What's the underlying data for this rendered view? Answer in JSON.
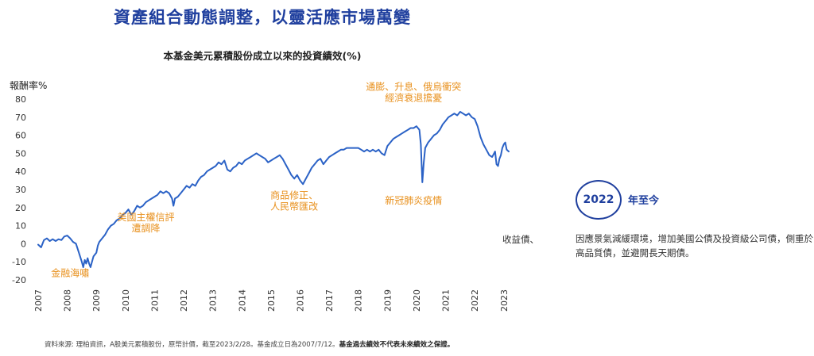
{
  "headline": "資產組合動態調整，以靈活應市場萬變",
  "source_note": {
    "regular": "資料來源: 理柏資訊，A股美元累積股份，原幣計價，截至2023/2/28。基金成立日為2007/7/12。",
    "bold": "基金過去績效不代表未來績效之保證。"
  },
  "side_panel": {
    "fragment": "收益債、",
    "badge_year": "2022",
    "badge_label": "年至今",
    "description": "因應景氣減緩環境，增加美國公債及投資級公司債，側重於高品質債，並避開長天期債。"
  },
  "colors": {
    "accent": "#1f3f9e",
    "line": "#2b62c6",
    "annotation": "#e8901c"
  },
  "chart_data": {
    "type": "line",
    "title": "本基金美元累積股份成立以來的投資績效(%)",
    "ylabel": "報酬率%",
    "ylim": [
      -20,
      80
    ],
    "xlim": [
      2007,
      2023.17
    ],
    "yticks": [
      80,
      70,
      60,
      50,
      40,
      30,
      20,
      10,
      0,
      -10,
      -20
    ],
    "xticks": [
      "2007",
      "2008",
      "2009",
      "2010",
      "2011",
      "2012",
      "2013",
      "2014",
      "2015",
      "2016",
      "2017",
      "2018",
      "2019",
      "2020",
      "2021",
      "2022",
      "2023"
    ],
    "grid": false,
    "annotations": [
      {
        "lines": [
          "金融海嘯"
        ],
        "x": 2008.1,
        "y": -18
      },
      {
        "lines": [
          "美國主權信評",
          "遭調降"
        ],
        "x": 2010.7,
        "y": 13
      },
      {
        "lines": [
          "商品修正、",
          "人民幣匯改"
        ],
        "x": 2015.8,
        "y": 25
      },
      {
        "lines": [
          "新冠肺炎疫情"
        ],
        "x": 2019.9,
        "y": 22
      },
      {
        "lines": [
          "通膨、升息、俄烏衝突",
          "經濟衰退擔憂"
        ],
        "x": 2019.9,
        "y": 85
      }
    ],
    "series": [
      {
        "values": [
          [
            2007.0,
            -0.5
          ],
          [
            2007.1,
            -2
          ],
          [
            2007.2,
            2
          ],
          [
            2007.3,
            3
          ],
          [
            2007.4,
            1.5
          ],
          [
            2007.5,
            2.5
          ],
          [
            2007.6,
            1.5
          ],
          [
            2007.7,
            2.5
          ],
          [
            2007.8,
            2
          ],
          [
            2007.9,
            4
          ],
          [
            2008.0,
            4.5
          ],
          [
            2008.1,
            3
          ],
          [
            2008.2,
            1
          ],
          [
            2008.3,
            0
          ],
          [
            2008.4,
            -5
          ],
          [
            2008.5,
            -10
          ],
          [
            2008.55,
            -13
          ],
          [
            2008.6,
            -9
          ],
          [
            2008.65,
            -11
          ],
          [
            2008.7,
            -8
          ],
          [
            2008.75,
            -11
          ],
          [
            2008.8,
            -13
          ],
          [
            2008.85,
            -10
          ],
          [
            2008.9,
            -7
          ],
          [
            2009.0,
            -5
          ],
          [
            2009.05,
            -1
          ],
          [
            2009.1,
            1
          ],
          [
            2009.2,
            3
          ],
          [
            2009.3,
            5
          ],
          [
            2009.4,
            8
          ],
          [
            2009.5,
            10
          ],
          [
            2009.6,
            11
          ],
          [
            2009.7,
            13
          ],
          [
            2009.8,
            14
          ],
          [
            2009.9,
            16
          ],
          [
            2010.0,
            17
          ],
          [
            2010.1,
            19
          ],
          [
            2010.2,
            16
          ],
          [
            2010.3,
            18
          ],
          [
            2010.4,
            21
          ],
          [
            2010.5,
            20
          ],
          [
            2010.6,
            21
          ],
          [
            2010.7,
            23
          ],
          [
            2010.8,
            24
          ],
          [
            2010.9,
            25
          ],
          [
            2011.0,
            26
          ],
          [
            2011.1,
            27
          ],
          [
            2011.2,
            29
          ],
          [
            2011.3,
            28
          ],
          [
            2011.4,
            29
          ],
          [
            2011.5,
            28
          ],
          [
            2011.6,
            25
          ],
          [
            2011.65,
            21
          ],
          [
            2011.7,
            25
          ],
          [
            2011.8,
            26
          ],
          [
            2011.9,
            28
          ],
          [
            2012.0,
            30
          ],
          [
            2012.1,
            32
          ],
          [
            2012.2,
            31
          ],
          [
            2012.3,
            33
          ],
          [
            2012.4,
            32
          ],
          [
            2012.5,
            35
          ],
          [
            2012.6,
            37
          ],
          [
            2012.7,
            38
          ],
          [
            2012.8,
            40
          ],
          [
            2012.9,
            41
          ],
          [
            2013.0,
            42
          ],
          [
            2013.1,
            43
          ],
          [
            2013.2,
            45
          ],
          [
            2013.3,
            44
          ],
          [
            2013.4,
            46
          ],
          [
            2013.5,
            41
          ],
          [
            2013.6,
            40
          ],
          [
            2013.7,
            42
          ],
          [
            2013.8,
            43
          ],
          [
            2013.9,
            45
          ],
          [
            2014.0,
            44
          ],
          [
            2014.1,
            46
          ],
          [
            2014.2,
            47
          ],
          [
            2014.3,
            48
          ],
          [
            2014.4,
            49
          ],
          [
            2014.5,
            50
          ],
          [
            2014.6,
            49
          ],
          [
            2014.7,
            48
          ],
          [
            2014.8,
            47
          ],
          [
            2014.9,
            45
          ],
          [
            2015.0,
            46
          ],
          [
            2015.1,
            47
          ],
          [
            2015.2,
            48
          ],
          [
            2015.3,
            49
          ],
          [
            2015.4,
            47
          ],
          [
            2015.5,
            44
          ],
          [
            2015.6,
            41
          ],
          [
            2015.7,
            38
          ],
          [
            2015.8,
            36
          ],
          [
            2015.9,
            38
          ],
          [
            2016.0,
            35
          ],
          [
            2016.1,
            33
          ],
          [
            2016.2,
            36
          ],
          [
            2016.3,
            39
          ],
          [
            2016.4,
            42
          ],
          [
            2016.5,
            44
          ],
          [
            2016.6,
            46
          ],
          [
            2016.7,
            47
          ],
          [
            2016.8,
            44
          ],
          [
            2016.9,
            46
          ],
          [
            2017.0,
            48
          ],
          [
            2017.1,
            49
          ],
          [
            2017.2,
            50
          ],
          [
            2017.3,
            51
          ],
          [
            2017.4,
            52
          ],
          [
            2017.5,
            52
          ],
          [
            2017.6,
            53
          ],
          [
            2017.7,
            53
          ],
          [
            2017.8,
            53
          ],
          [
            2017.9,
            53
          ],
          [
            2018.0,
            53
          ],
          [
            2018.1,
            52
          ],
          [
            2018.2,
            51
          ],
          [
            2018.3,
            52
          ],
          [
            2018.4,
            51
          ],
          [
            2018.5,
            52
          ],
          [
            2018.6,
            51
          ],
          [
            2018.7,
            52
          ],
          [
            2018.8,
            50
          ],
          [
            2018.9,
            49
          ],
          [
            2019.0,
            54
          ],
          [
            2019.1,
            56
          ],
          [
            2019.2,
            58
          ],
          [
            2019.3,
            59
          ],
          [
            2019.4,
            60
          ],
          [
            2019.5,
            61
          ],
          [
            2019.6,
            62
          ],
          [
            2019.7,
            63
          ],
          [
            2019.8,
            64
          ],
          [
            2019.9,
            64
          ],
          [
            2020.0,
            65
          ],
          [
            2020.1,
            63
          ],
          [
            2020.15,
            55
          ],
          [
            2020.2,
            34
          ],
          [
            2020.25,
            45
          ],
          [
            2020.3,
            53
          ],
          [
            2020.4,
            56
          ],
          [
            2020.5,
            58
          ],
          [
            2020.6,
            60
          ],
          [
            2020.7,
            61
          ],
          [
            2020.8,
            63
          ],
          [
            2020.9,
            66
          ],
          [
            2021.0,
            68
          ],
          [
            2021.1,
            70
          ],
          [
            2021.2,
            71
          ],
          [
            2021.3,
            72
          ],
          [
            2021.4,
            71
          ],
          [
            2021.5,
            73
          ],
          [
            2021.6,
            72
          ],
          [
            2021.7,
            71
          ],
          [
            2021.8,
            72
          ],
          [
            2021.9,
            70
          ],
          [
            2022.0,
            69
          ],
          [
            2022.1,
            65
          ],
          [
            2022.2,
            59
          ],
          [
            2022.3,
            55
          ],
          [
            2022.4,
            52
          ],
          [
            2022.5,
            49
          ],
          [
            2022.6,
            48
          ],
          [
            2022.7,
            51
          ],
          [
            2022.75,
            44
          ],
          [
            2022.8,
            43
          ],
          [
            2022.85,
            47
          ],
          [
            2022.9,
            49
          ],
          [
            2022.95,
            53
          ],
          [
            2023.0,
            55
          ],
          [
            2023.05,
            56
          ],
          [
            2023.1,
            52
          ],
          [
            2023.17,
            51
          ]
        ]
      }
    ]
  }
}
